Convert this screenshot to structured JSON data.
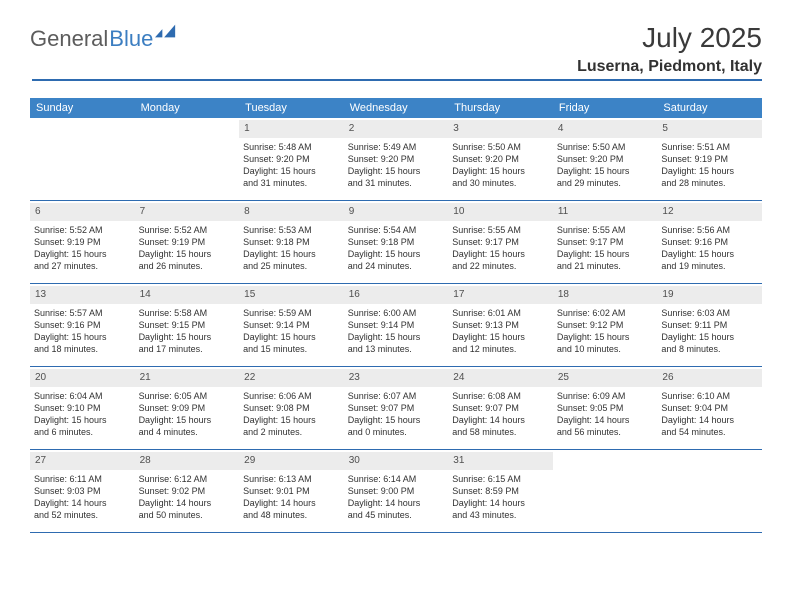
{
  "brand": {
    "part1": "General",
    "part2": "Blue"
  },
  "title": "July 2025",
  "location": "Luserna, Piedmont, Italy",
  "colors": {
    "header_bg": "#3c83c6",
    "border": "#2e6bb0",
    "daynum_bg": "#ececec",
    "text": "#323232",
    "accent": "#3c7ec1"
  },
  "daynames": [
    "Sunday",
    "Monday",
    "Tuesday",
    "Wednesday",
    "Thursday",
    "Friday",
    "Saturday"
  ],
  "weeks": [
    [
      null,
      null,
      {
        "d": "1",
        "sr": "Sunrise: 5:48 AM",
        "ss": "Sunset: 9:20 PM",
        "dl1": "Daylight: 15 hours",
        "dl2": "and 31 minutes."
      },
      {
        "d": "2",
        "sr": "Sunrise: 5:49 AM",
        "ss": "Sunset: 9:20 PM",
        "dl1": "Daylight: 15 hours",
        "dl2": "and 31 minutes."
      },
      {
        "d": "3",
        "sr": "Sunrise: 5:50 AM",
        "ss": "Sunset: 9:20 PM",
        "dl1": "Daylight: 15 hours",
        "dl2": "and 30 minutes."
      },
      {
        "d": "4",
        "sr": "Sunrise: 5:50 AM",
        "ss": "Sunset: 9:20 PM",
        "dl1": "Daylight: 15 hours",
        "dl2": "and 29 minutes."
      },
      {
        "d": "5",
        "sr": "Sunrise: 5:51 AM",
        "ss": "Sunset: 9:19 PM",
        "dl1": "Daylight: 15 hours",
        "dl2": "and 28 minutes."
      }
    ],
    [
      {
        "d": "6",
        "sr": "Sunrise: 5:52 AM",
        "ss": "Sunset: 9:19 PM",
        "dl1": "Daylight: 15 hours",
        "dl2": "and 27 minutes."
      },
      {
        "d": "7",
        "sr": "Sunrise: 5:52 AM",
        "ss": "Sunset: 9:19 PM",
        "dl1": "Daylight: 15 hours",
        "dl2": "and 26 minutes."
      },
      {
        "d": "8",
        "sr": "Sunrise: 5:53 AM",
        "ss": "Sunset: 9:18 PM",
        "dl1": "Daylight: 15 hours",
        "dl2": "and 25 minutes."
      },
      {
        "d": "9",
        "sr": "Sunrise: 5:54 AM",
        "ss": "Sunset: 9:18 PM",
        "dl1": "Daylight: 15 hours",
        "dl2": "and 24 minutes."
      },
      {
        "d": "10",
        "sr": "Sunrise: 5:55 AM",
        "ss": "Sunset: 9:17 PM",
        "dl1": "Daylight: 15 hours",
        "dl2": "and 22 minutes."
      },
      {
        "d": "11",
        "sr": "Sunrise: 5:55 AM",
        "ss": "Sunset: 9:17 PM",
        "dl1": "Daylight: 15 hours",
        "dl2": "and 21 minutes."
      },
      {
        "d": "12",
        "sr": "Sunrise: 5:56 AM",
        "ss": "Sunset: 9:16 PM",
        "dl1": "Daylight: 15 hours",
        "dl2": "and 19 minutes."
      }
    ],
    [
      {
        "d": "13",
        "sr": "Sunrise: 5:57 AM",
        "ss": "Sunset: 9:16 PM",
        "dl1": "Daylight: 15 hours",
        "dl2": "and 18 minutes."
      },
      {
        "d": "14",
        "sr": "Sunrise: 5:58 AM",
        "ss": "Sunset: 9:15 PM",
        "dl1": "Daylight: 15 hours",
        "dl2": "and 17 minutes."
      },
      {
        "d": "15",
        "sr": "Sunrise: 5:59 AM",
        "ss": "Sunset: 9:14 PM",
        "dl1": "Daylight: 15 hours",
        "dl2": "and 15 minutes."
      },
      {
        "d": "16",
        "sr": "Sunrise: 6:00 AM",
        "ss": "Sunset: 9:14 PM",
        "dl1": "Daylight: 15 hours",
        "dl2": "and 13 minutes."
      },
      {
        "d": "17",
        "sr": "Sunrise: 6:01 AM",
        "ss": "Sunset: 9:13 PM",
        "dl1": "Daylight: 15 hours",
        "dl2": "and 12 minutes."
      },
      {
        "d": "18",
        "sr": "Sunrise: 6:02 AM",
        "ss": "Sunset: 9:12 PM",
        "dl1": "Daylight: 15 hours",
        "dl2": "and 10 minutes."
      },
      {
        "d": "19",
        "sr": "Sunrise: 6:03 AM",
        "ss": "Sunset: 9:11 PM",
        "dl1": "Daylight: 15 hours",
        "dl2": "and 8 minutes."
      }
    ],
    [
      {
        "d": "20",
        "sr": "Sunrise: 6:04 AM",
        "ss": "Sunset: 9:10 PM",
        "dl1": "Daylight: 15 hours",
        "dl2": "and 6 minutes."
      },
      {
        "d": "21",
        "sr": "Sunrise: 6:05 AM",
        "ss": "Sunset: 9:09 PM",
        "dl1": "Daylight: 15 hours",
        "dl2": "and 4 minutes."
      },
      {
        "d": "22",
        "sr": "Sunrise: 6:06 AM",
        "ss": "Sunset: 9:08 PM",
        "dl1": "Daylight: 15 hours",
        "dl2": "and 2 minutes."
      },
      {
        "d": "23",
        "sr": "Sunrise: 6:07 AM",
        "ss": "Sunset: 9:07 PM",
        "dl1": "Daylight: 15 hours",
        "dl2": "and 0 minutes."
      },
      {
        "d": "24",
        "sr": "Sunrise: 6:08 AM",
        "ss": "Sunset: 9:07 PM",
        "dl1": "Daylight: 14 hours",
        "dl2": "and 58 minutes."
      },
      {
        "d": "25",
        "sr": "Sunrise: 6:09 AM",
        "ss": "Sunset: 9:05 PM",
        "dl1": "Daylight: 14 hours",
        "dl2": "and 56 minutes."
      },
      {
        "d": "26",
        "sr": "Sunrise: 6:10 AM",
        "ss": "Sunset: 9:04 PM",
        "dl1": "Daylight: 14 hours",
        "dl2": "and 54 minutes."
      }
    ],
    [
      {
        "d": "27",
        "sr": "Sunrise: 6:11 AM",
        "ss": "Sunset: 9:03 PM",
        "dl1": "Daylight: 14 hours",
        "dl2": "and 52 minutes."
      },
      {
        "d": "28",
        "sr": "Sunrise: 6:12 AM",
        "ss": "Sunset: 9:02 PM",
        "dl1": "Daylight: 14 hours",
        "dl2": "and 50 minutes."
      },
      {
        "d": "29",
        "sr": "Sunrise: 6:13 AM",
        "ss": "Sunset: 9:01 PM",
        "dl1": "Daylight: 14 hours",
        "dl2": "and 48 minutes."
      },
      {
        "d": "30",
        "sr": "Sunrise: 6:14 AM",
        "ss": "Sunset: 9:00 PM",
        "dl1": "Daylight: 14 hours",
        "dl2": "and 45 minutes."
      },
      {
        "d": "31",
        "sr": "Sunrise: 6:15 AM",
        "ss": "Sunset: 8:59 PM",
        "dl1": "Daylight: 14 hours",
        "dl2": "and 43 minutes."
      },
      null,
      null
    ]
  ]
}
